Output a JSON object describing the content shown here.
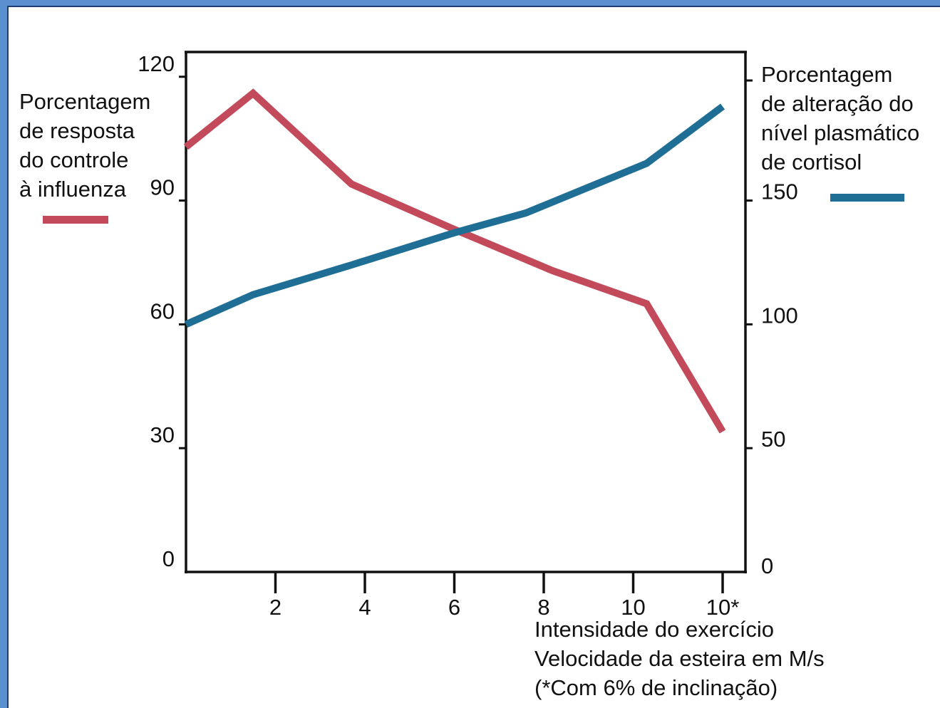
{
  "chart_data": {
    "type": "line",
    "x_ticks": [
      "2",
      "4",
      "6",
      "8",
      "10",
      "10*"
    ],
    "x_label_lines": [
      "Intensidade do exercício",
      "Velocidade da esteira em M/s",
      "(*Com 6% de inclinação)"
    ],
    "y_left": {
      "ticks": [
        "0",
        "30",
        "60",
        "90",
        "120"
      ],
      "range": [
        0,
        126
      ],
      "label_lines": [
        "Porcentagem",
        "de resposta",
        "do controle",
        "à influenza"
      ]
    },
    "y_right": {
      "ticks": [
        "0",
        "50",
        "100",
        "150"
      ],
      "range": [
        0,
        210
      ],
      "label_lines": [
        "Porcentagem",
        "de alteração do",
        "nível plasmático",
        "de cortisol"
      ]
    },
    "x_positions": [
      0,
      1,
      2,
      3,
      4,
      5,
      6
    ],
    "x_tick_positions": [
      1,
      2,
      3,
      4,
      5,
      6
    ],
    "series": [
      {
        "axis": "left",
        "color": "#c24a5a",
        "points": [
          [
            0,
            103
          ],
          [
            0.75,
            116
          ],
          [
            1.85,
            94
          ],
          [
            3.0,
            83
          ],
          [
            4.1,
            73
          ],
          [
            5.15,
            65
          ],
          [
            6.0,
            34
          ]
        ]
      },
      {
        "axis": "right",
        "color": "#1f6e96",
        "points": [
          [
            0,
            100
          ],
          [
            0.75,
            112
          ],
          [
            1.85,
            124
          ],
          [
            3.0,
            137
          ],
          [
            3.8,
            145
          ],
          [
            5.15,
            165
          ],
          [
            6.0,
            188
          ]
        ]
      }
    ],
    "grid": false
  }
}
